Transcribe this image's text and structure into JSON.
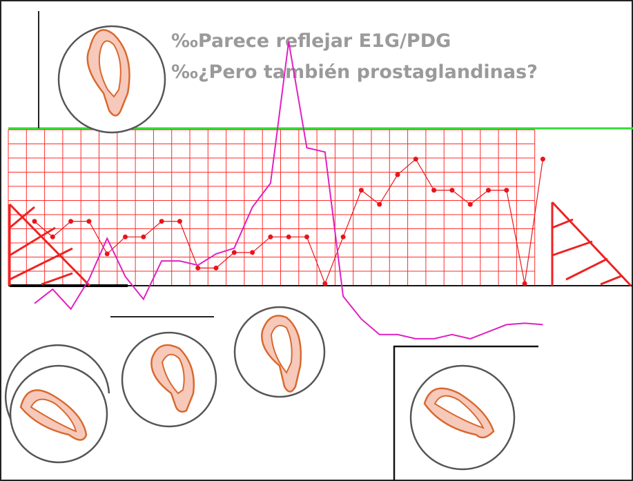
{
  "caption_1": "‰Parece reflejar E1G/PDG",
  "caption_2": "‰¿Pero también prostaglandinas?",
  "chart_data": {
    "type": "line",
    "categories": [
      null,
      null,
      null,
      null,
      null,
      null,
      null,
      null,
      null,
      null,
      null,
      null,
      null,
      null,
      null,
      null,
      null,
      null,
      null,
      null,
      null,
      null,
      null,
      null,
      null,
      null,
      null,
      null,
      null
    ],
    "ylim": [
      -4,
      18
    ],
    "series": [
      {
        "color": "#e8141b",
        "values": [
          4.5,
          3.4,
          4.5,
          4.5,
          2.2,
          3.4,
          3.4,
          4.5,
          4.5,
          1.2,
          1.2,
          2.3,
          2.3,
          3.4,
          3.4,
          3.4,
          0.1,
          3.4,
          6.7,
          5.7,
          7.8,
          8.9,
          6.7,
          6.7,
          5.7,
          6.7,
          6.7,
          0.1,
          8.9
        ]
      },
      {
        "color": "#e020c0",
        "values": [
          -1.3,
          -0.3,
          -1.7,
          0.4,
          3.3,
          0.6,
          -1.0,
          1.7,
          1.7,
          1.4,
          2.2,
          2.6,
          5.5,
          7.2,
          17.2,
          9.7,
          9.4,
          -0.8,
          -2.4,
          -3.5,
          -3.5,
          -3.8,
          -3.8,
          -3.5,
          -3.8,
          -3.3,
          -2.8,
          -2.7,
          -2.8
        ]
      }
    ]
  }
}
